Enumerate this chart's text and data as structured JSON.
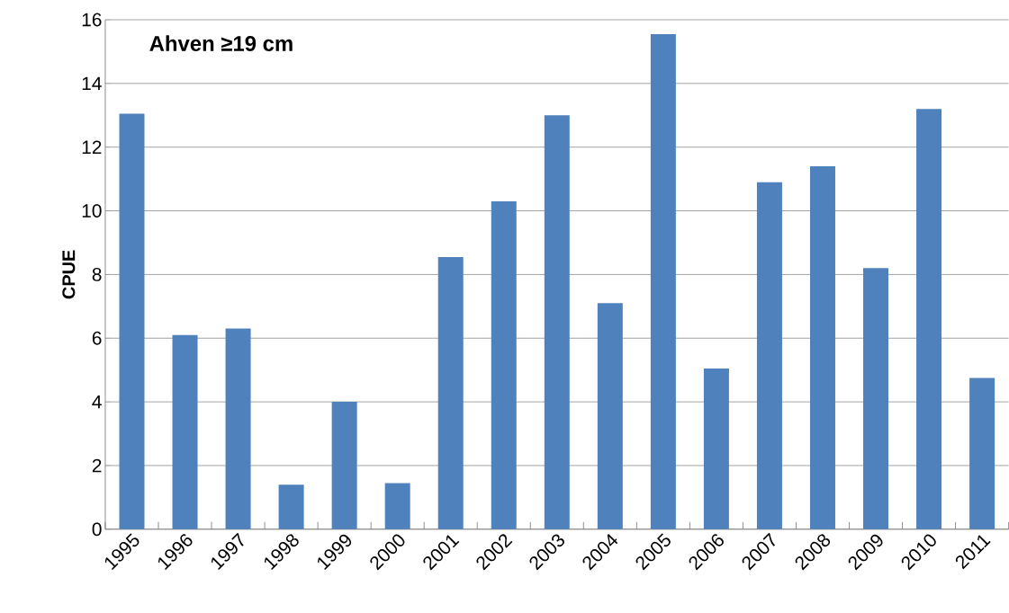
{
  "chart_data": {
    "type": "bar",
    "title": "Ahven ≥19 cm",
    "ylabel": "CPUE",
    "categories": [
      "1995",
      "1996",
      "1997",
      "1998",
      "1999",
      "2000",
      "2001",
      "2002",
      "2003",
      "2004",
      "2005",
      "2006",
      "2007",
      "2008",
      "2009",
      "2010",
      "2011"
    ],
    "values": [
      13.05,
      6.1,
      6.3,
      1.4,
      4.0,
      1.45,
      8.55,
      10.3,
      13.0,
      7.1,
      15.55,
      5.05,
      10.9,
      11.4,
      8.2,
      13.2,
      4.75
    ],
    "color": "#4f81bd",
    "ylim": [
      0,
      16
    ],
    "yticks": [
      0,
      2,
      4,
      6,
      8,
      10,
      12,
      14,
      16
    ],
    "grid": "y"
  }
}
